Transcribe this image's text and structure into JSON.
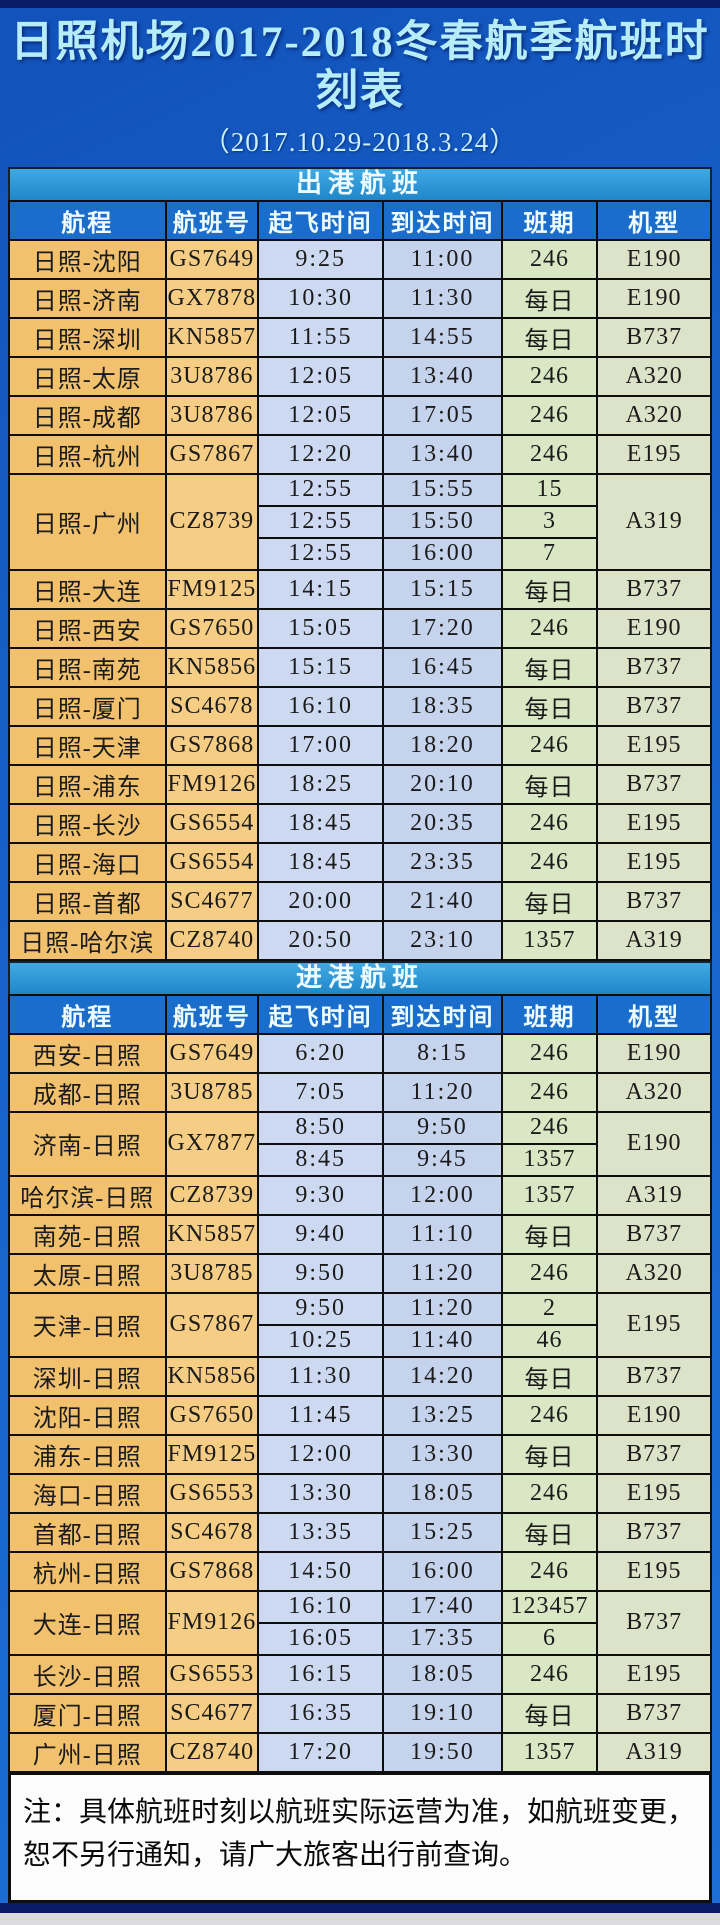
{
  "header": {
    "title": "日照机场2017-2018冬春航季航班时刻表",
    "subtitle": "（2017.10.29-2018.3.24）"
  },
  "columns": [
    "航程",
    "航班号",
    "起飞时间",
    "到达时间",
    "班期",
    "机型"
  ],
  "sections": [
    {
      "name": "出港航班",
      "rows": [
        {
          "route": "日照-沈阳",
          "flight": "GS7649",
          "schedules": [
            {
              "dep": "9:25",
              "arr": "11:00",
              "days": "246"
            }
          ],
          "aircraft": "E190"
        },
        {
          "route": "日照-济南",
          "flight": "GX7878",
          "schedules": [
            {
              "dep": "10:30",
              "arr": "11:30",
              "days": "每日"
            }
          ],
          "aircraft": "E190"
        },
        {
          "route": "日照-深圳",
          "flight": "KN5857",
          "schedules": [
            {
              "dep": "11:55",
              "arr": "14:55",
              "days": "每日"
            }
          ],
          "aircraft": "B737"
        },
        {
          "route": "日照-太原",
          "flight": "3U8786",
          "schedules": [
            {
              "dep": "12:05",
              "arr": "13:40",
              "days": "246"
            }
          ],
          "aircraft": "A320"
        },
        {
          "route": "日照-成都",
          "flight": "3U8786",
          "schedules": [
            {
              "dep": "12:05",
              "arr": "17:05",
              "days": "246"
            }
          ],
          "aircraft": "A320"
        },
        {
          "route": "日照-杭州",
          "flight": "GS7867",
          "schedules": [
            {
              "dep": "12:20",
              "arr": "13:40",
              "days": "246"
            }
          ],
          "aircraft": "E195"
        },
        {
          "route": "日照-广州",
          "flight": "CZ8739",
          "schedules": [
            {
              "dep": "12:55",
              "arr": "15:55",
              "days": "15"
            },
            {
              "dep": "12:55",
              "arr": "15:50",
              "days": "3"
            },
            {
              "dep": "12:55",
              "arr": "16:00",
              "days": "7"
            }
          ],
          "aircraft": "A319"
        },
        {
          "route": "日照-大连",
          "flight": "FM9125",
          "schedules": [
            {
              "dep": "14:15",
              "arr": "15:15",
              "days": "每日"
            }
          ],
          "aircraft": "B737"
        },
        {
          "route": "日照-西安",
          "flight": "GS7650",
          "schedules": [
            {
              "dep": "15:05",
              "arr": "17:20",
              "days": "246"
            }
          ],
          "aircraft": "E190"
        },
        {
          "route": "日照-南苑",
          "flight": "KN5856",
          "schedules": [
            {
              "dep": "15:15",
              "arr": "16:45",
              "days": "每日"
            }
          ],
          "aircraft": "B737"
        },
        {
          "route": "日照-厦门",
          "flight": "SC4678",
          "schedules": [
            {
              "dep": "16:10",
              "arr": "18:35",
              "days": "每日"
            }
          ],
          "aircraft": "B737"
        },
        {
          "route": "日照-天津",
          "flight": "GS7868",
          "schedules": [
            {
              "dep": "17:00",
              "arr": "18:20",
              "days": "246"
            }
          ],
          "aircraft": "E195"
        },
        {
          "route": "日照-浦东",
          "flight": "FM9126",
          "schedules": [
            {
              "dep": "18:25",
              "arr": "20:10",
              "days": "每日"
            }
          ],
          "aircraft": "B737"
        },
        {
          "route": "日照-长沙",
          "flight": "GS6554",
          "schedules": [
            {
              "dep": "18:45",
              "arr": "20:35",
              "days": "246"
            }
          ],
          "aircraft": "E195"
        },
        {
          "route": "日照-海口",
          "flight": "GS6554",
          "schedules": [
            {
              "dep": "18:45",
              "arr": "23:35",
              "days": "246"
            }
          ],
          "aircraft": "E195"
        },
        {
          "route": "日照-首都",
          "flight": "SC4677",
          "schedules": [
            {
              "dep": "20:00",
              "arr": "21:40",
              "days": "每日"
            }
          ],
          "aircraft": "B737"
        },
        {
          "route": "日照-哈尔滨",
          "flight": "CZ8740",
          "schedules": [
            {
              "dep": "20:50",
              "arr": "23:10",
              "days": "1357"
            }
          ],
          "aircraft": "A319"
        }
      ]
    },
    {
      "name": "进港航班",
      "rows": [
        {
          "route": "西安-日照",
          "flight": "GS7649",
          "schedules": [
            {
              "dep": "6:20",
              "arr": "8:15",
              "days": "246"
            }
          ],
          "aircraft": "E190"
        },
        {
          "route": "成都-日照",
          "flight": "3U8785",
          "schedules": [
            {
              "dep": "7:05",
              "arr": "11:20",
              "days": "246"
            }
          ],
          "aircraft": "A320"
        },
        {
          "route": "济南-日照",
          "flight": "GX7877",
          "schedules": [
            {
              "dep": "8:50",
              "arr": "9:50",
              "days": "246"
            },
            {
              "dep": "8:45",
              "arr": "9:45",
              "days": "1357"
            }
          ],
          "aircraft": "E190"
        },
        {
          "route": "哈尔滨-日照",
          "flight": "CZ8739",
          "schedules": [
            {
              "dep": "9:30",
              "arr": "12:00",
              "days": "1357"
            }
          ],
          "aircraft": "A319"
        },
        {
          "route": "南苑-日照",
          "flight": "KN5857",
          "schedules": [
            {
              "dep": "9:40",
              "arr": "11:10",
              "days": "每日"
            }
          ],
          "aircraft": "B737"
        },
        {
          "route": "太原-日照",
          "flight": "3U8785",
          "schedules": [
            {
              "dep": "9:50",
              "arr": "11:20",
              "days": "246"
            }
          ],
          "aircraft": "A320"
        },
        {
          "route": "天津-日照",
          "flight": "GS7867",
          "schedules": [
            {
              "dep": "9:50",
              "arr": "11:20",
              "days": "2"
            },
            {
              "dep": "10:25",
              "arr": "11:40",
              "days": "46"
            }
          ],
          "aircraft": "E195"
        },
        {
          "route": "深圳-日照",
          "flight": "KN5856",
          "schedules": [
            {
              "dep": "11:30",
              "arr": "14:20",
              "days": "每日"
            }
          ],
          "aircraft": "B737"
        },
        {
          "route": "沈阳-日照",
          "flight": "GS7650",
          "schedules": [
            {
              "dep": "11:45",
              "arr": "13:25",
              "days": "246"
            }
          ],
          "aircraft": "E190"
        },
        {
          "route": "浦东-日照",
          "flight": "FM9125",
          "schedules": [
            {
              "dep": "12:00",
              "arr": "13:30",
              "days": "每日"
            }
          ],
          "aircraft": "B737"
        },
        {
          "route": "海口-日照",
          "flight": "GS6553",
          "schedules": [
            {
              "dep": "13:30",
              "arr": "18:05",
              "days": "246"
            }
          ],
          "aircraft": "E195"
        },
        {
          "route": "首都-日照",
          "flight": "SC4678",
          "schedules": [
            {
              "dep": "13:35",
              "arr": "15:25",
              "days": "每日"
            }
          ],
          "aircraft": "B737"
        },
        {
          "route": "杭州-日照",
          "flight": "GS7868",
          "schedules": [
            {
              "dep": "14:50",
              "arr": "16:00",
              "days": "246"
            }
          ],
          "aircraft": "E195"
        },
        {
          "route": "大连-日照",
          "flight": "FM9126",
          "schedules": [
            {
              "dep": "16:10",
              "arr": "17:40",
              "days": "123457"
            },
            {
              "dep": "16:05",
              "arr": "17:35",
              "days": "6"
            }
          ],
          "aircraft": "B737"
        },
        {
          "route": "长沙-日照",
          "flight": "GS6553",
          "schedules": [
            {
              "dep": "16:15",
              "arr": "18:05",
              "days": "246"
            }
          ],
          "aircraft": "E195"
        },
        {
          "route": "厦门-日照",
          "flight": "SC4677",
          "schedules": [
            {
              "dep": "16:35",
              "arr": "19:10",
              "days": "每日"
            }
          ],
          "aircraft": "B737"
        },
        {
          "route": "广州-日照",
          "flight": "CZ8740",
          "schedules": [
            {
              "dep": "17:20",
              "arr": "19:50",
              "days": "1357"
            }
          ],
          "aircraft": "A319"
        }
      ]
    }
  ],
  "note": "注：具体航班时刻以航班实际运营为准，如航班变更，恕不另行通知，请广大旅客出行前查询。",
  "colors": {
    "background_blue": "#1560c8",
    "top_border_navy": "#0a1a66",
    "section_bar_blue": "#2f9bd9",
    "header_row_blue": "#1b6dcb",
    "title_text_cyan": "#b7edf8",
    "route_orange": "#f2c16e",
    "flight_orange": "#f6cd84",
    "dep_time_blue": "#cdd9f1",
    "arr_time_blue": "#c5d3ed",
    "days_green": "#d9e7c4",
    "aircraft_green": "#dde3c8",
    "grid_line": "#0e0e0e",
    "note_bg": "#fcfcfc"
  }
}
